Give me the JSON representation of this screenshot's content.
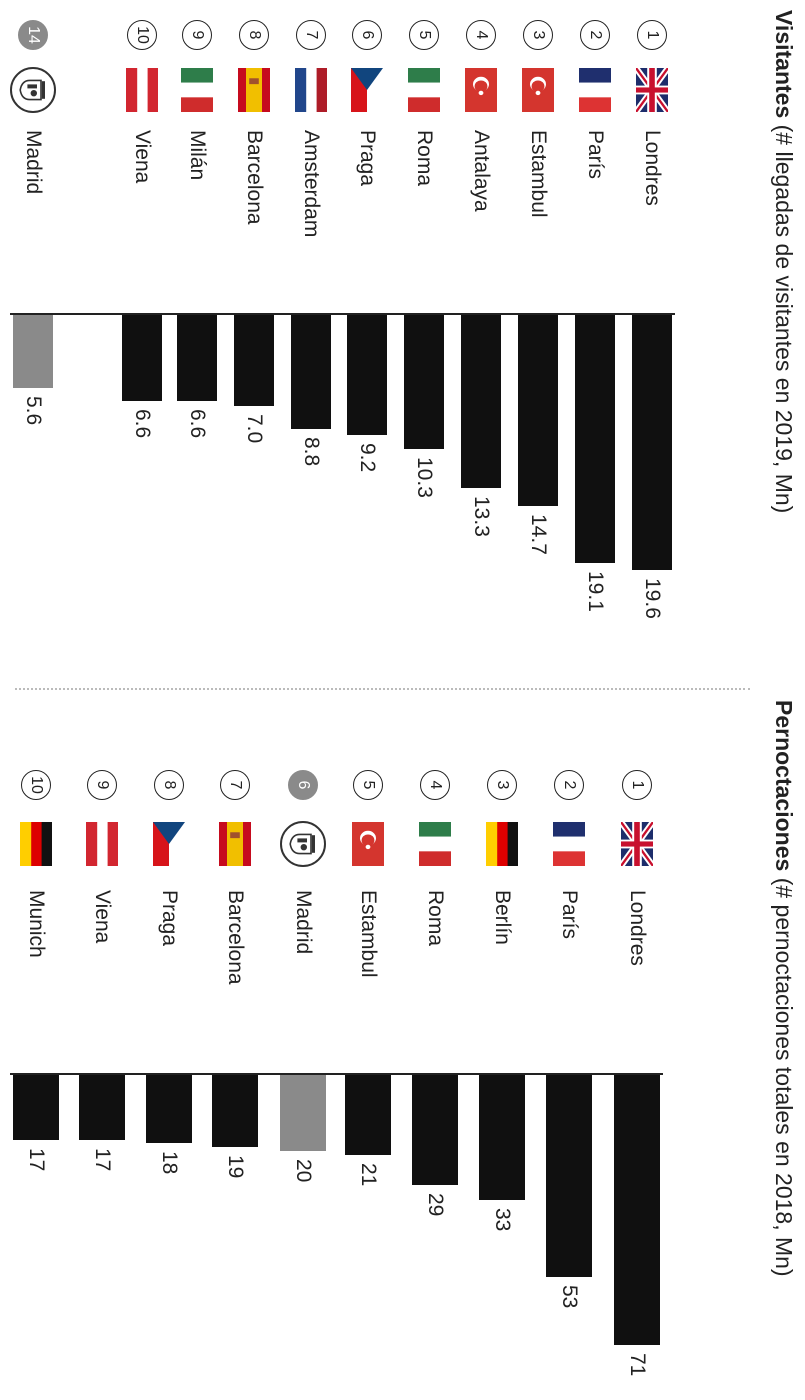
{
  "chart_data": [
    {
      "type": "bar",
      "orientation": "horizontal",
      "title": "Visitantes",
      "subtitle": "(# llegadas de visitantes en 2019, Mn)",
      "categories": [
        "Londres",
        "París",
        "Estambul",
        "Antalaya",
        "Roma",
        "Praga",
        "Amsterdam",
        "Barcelona",
        "Milán",
        "Viena",
        "Madrid"
      ],
      "ranks": [
        "1",
        "2",
        "3",
        "4",
        "5",
        "6",
        "7",
        "8",
        "9",
        "10",
        "14"
      ],
      "values": [
        19.6,
        19.1,
        14.7,
        13.3,
        10.3,
        9.2,
        8.8,
        7.0,
        6.6,
        6.6,
        5.6
      ],
      "labels": [
        "19.6",
        "19.1",
        "14.7",
        "13.3",
        "10.3",
        "9.2",
        "8.8",
        "7.0",
        "6.6",
        "6.6",
        "5.6"
      ],
      "highlight": "Madrid",
      "flags": [
        "uk-flag-icon",
        "france-flag-icon",
        "turkey-flag-icon",
        "turkey-flag-icon",
        "italy-flag-icon",
        "czech-flag-icon",
        "netherlands-flag-icon",
        "spain-flag-icon",
        "italy-flag-icon",
        "austria-flag-icon",
        "madrid-emblem-icon"
      ],
      "colors": {
        "bar": "#101010",
        "highlight": "#8a8a8a"
      }
    },
    {
      "type": "bar",
      "orientation": "horizontal",
      "title": "Pernoctaciones",
      "subtitle": "(# pernoctaciones totales en 2018, Mn)",
      "categories": [
        "Londres",
        "París",
        "Berlín",
        "Roma",
        "Estambul",
        "Madrid",
        "Barcelona",
        "Praga",
        "Viena",
        "Munich"
      ],
      "ranks": [
        "1",
        "2",
        "3",
        "4",
        "5",
        "6",
        "7",
        "8",
        "9",
        "10"
      ],
      "values": [
        71,
        53,
        33,
        29,
        21,
        20,
        19,
        18,
        17,
        17
      ],
      "labels": [
        "71",
        "53",
        "33",
        "29",
        "21",
        "20",
        "19",
        "18",
        "17",
        "17"
      ],
      "highlight": "Madrid",
      "flags": [
        "uk-flag-icon",
        "france-flag-icon",
        "germany-flag-icon",
        "italy-flag-icon",
        "turkey-flag-icon",
        "madrid-emblem-icon",
        "spain-flag-icon",
        "czech-flag-icon",
        "austria-flag-icon",
        "germany-flag-icon"
      ],
      "colors": {
        "bar": "#101010",
        "highlight": "#8a8a8a"
      }
    }
  ]
}
